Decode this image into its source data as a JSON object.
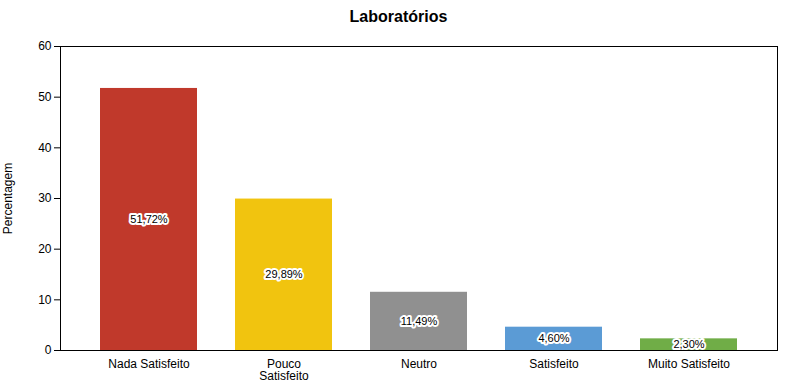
{
  "chart_data": {
    "type": "bar",
    "title": "Laboratórios",
    "ylabel": "Percentagem",
    "categories": [
      "Nada Satisfeito",
      "Pouco\nSatisfeito",
      "Neutro",
      "Satisfeito",
      "Muito Satisfeito"
    ],
    "values": [
      51.72,
      29.89,
      11.49,
      4.6,
      2.3
    ],
    "value_labels": [
      "51,72%",
      "29,89%",
      "11,49%",
      "4,60%",
      "2,30%"
    ],
    "colors": [
      "#C0392B",
      "#F1C40F",
      "#909090",
      "#5B9BD5",
      "#70AD47"
    ],
    "ylim": [
      0,
      60
    ],
    "yticks": [
      0,
      10,
      20,
      30,
      40,
      50,
      60
    ],
    "grid": false,
    "data_labels": true
  }
}
